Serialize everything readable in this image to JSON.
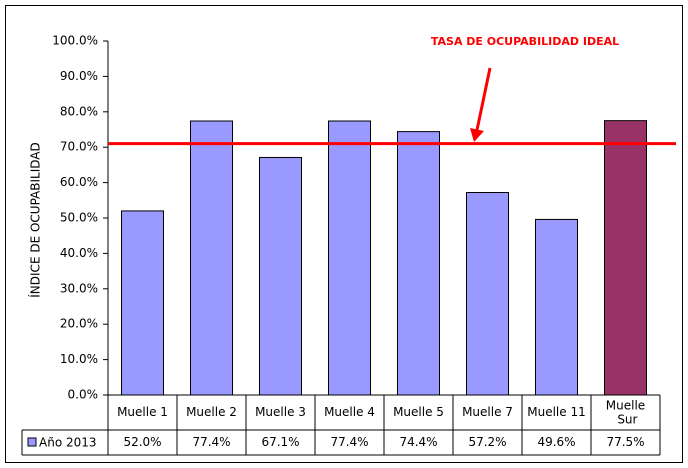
{
  "chart_data": {
    "type": "bar",
    "y_label": "ÍNDICE DE OCUPABILIDAD",
    "annotation": "TASA DE OCUPABILIDAD IDEAL",
    "ideal": 71,
    "ideal_color": "#ff0000",
    "categories": [
      "Muelle 1",
      "Muelle 2",
      "Muelle 3",
      "Muelle 4",
      "Muelle 5",
      "Muelle 7",
      "Muelle 11",
      "Muelle Sur"
    ],
    "series": [
      {
        "name": "Año 2013",
        "color": "#9999ff",
        "colors": [
          "#9999ff",
          "#9999ff",
          "#9999ff",
          "#9999ff",
          "#9999ff",
          "#9999ff",
          "#9999ff",
          "#993366"
        ],
        "values": [
          52.0,
          77.4,
          67.1,
          77.4,
          74.4,
          57.2,
          49.6,
          77.5
        ],
        "value_labels": [
          "52.0%",
          "77.4%",
          "67.1%",
          "77.4%",
          "74.4%",
          "57.2%",
          "49.6%",
          "77.5%"
        ]
      }
    ],
    "ylim": [
      0,
      100
    ],
    "yticks": [
      {
        "value": 0,
        "label": "0.0%"
      },
      {
        "value": 10,
        "label": "10.0%"
      },
      {
        "value": 20,
        "label": "20.0%"
      },
      {
        "value": 30,
        "label": "30.0%"
      },
      {
        "value": 40,
        "label": "40.0%"
      },
      {
        "value": 50,
        "label": "50.0%"
      },
      {
        "value": 60,
        "label": "60.0%"
      },
      {
        "value": 70,
        "label": "70.0%"
      },
      {
        "value": 80,
        "label": "80.0%"
      },
      {
        "value": 90,
        "label": "90.0%"
      },
      {
        "value": 100,
        "label": "100.0%"
      }
    ]
  }
}
